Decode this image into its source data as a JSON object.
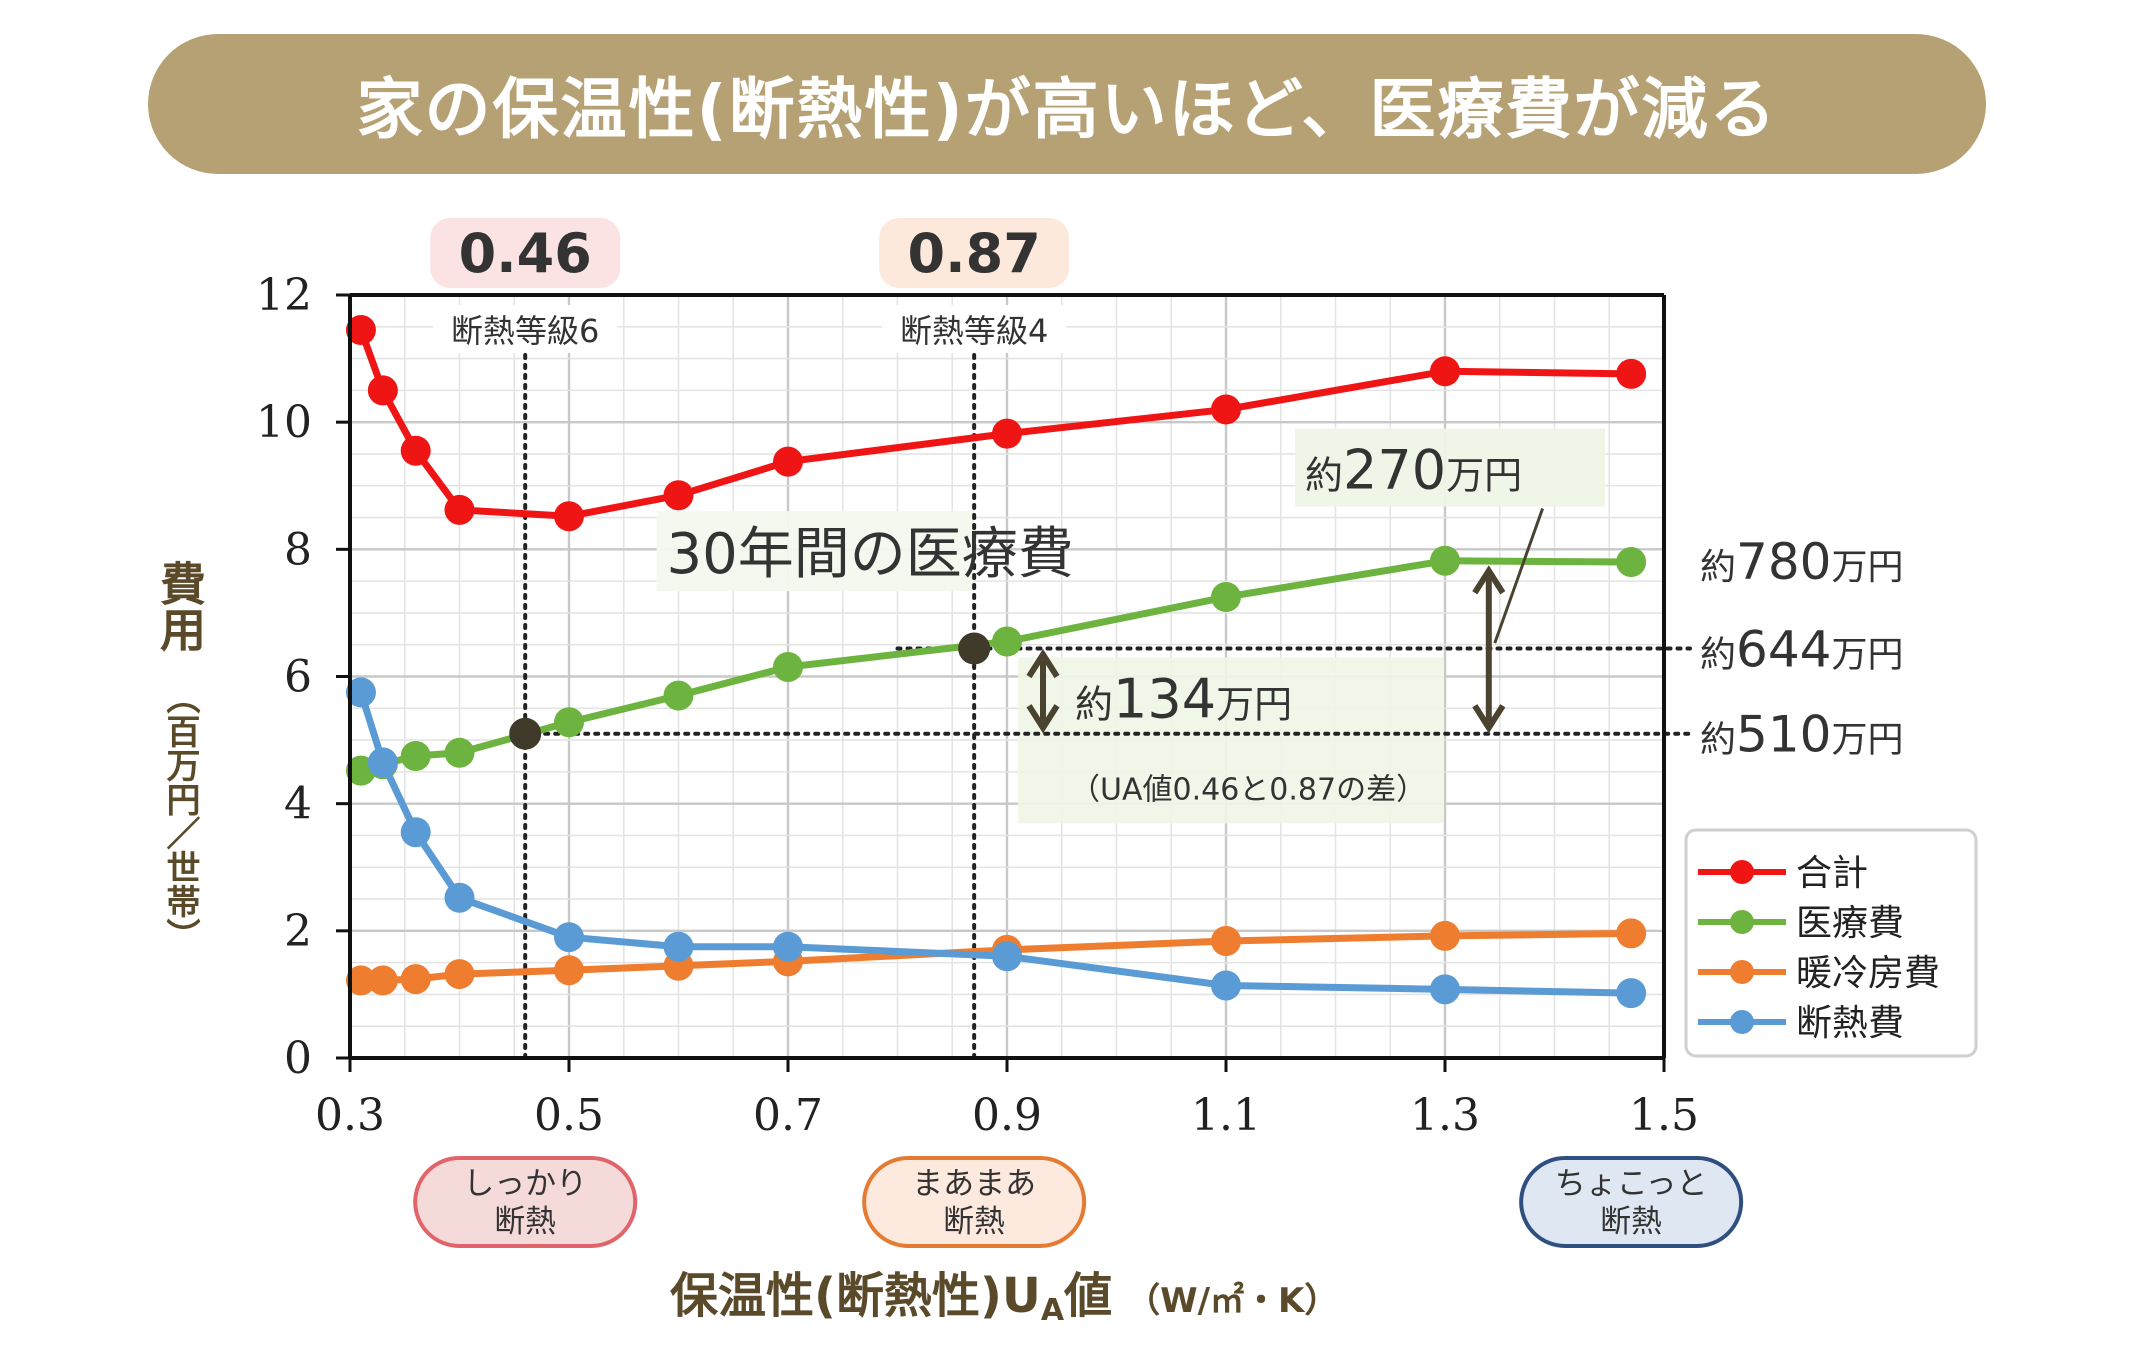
{
  "banner": {
    "title": "家の保温性(断熱性)が高いほど、医療費が減る"
  },
  "chart_data": {
    "type": "line",
    "xlabel_main": "保温性(断熱性)U",
    "xlabel_sub": "A",
    "xlabel_tail": "値",
    "xlabel_unit": "（W/㎡・K）",
    "ylabel_main": "費用",
    "ylabel_unit": "（百万円／世帯）",
    "xlim": [
      0.3,
      1.5
    ],
    "ylim": [
      0,
      12
    ],
    "x_ticks": [
      "0.3",
      "0.5",
      "0.7",
      "0.9",
      "1.1",
      "1.3",
      "1.5"
    ],
    "y_ticks": [
      "0",
      "2",
      "4",
      "6",
      "8",
      "10",
      "12"
    ],
    "grid": true,
    "legend_position": "right",
    "x": [
      0.31,
      0.33,
      0.36,
      0.4,
      0.5,
      0.6,
      0.7,
      0.9,
      1.1,
      1.3,
      1.47
    ],
    "series": [
      {
        "name": "合計",
        "color": "#f01515",
        "values": [
          11.45,
          10.5,
          9.55,
          8.62,
          8.52,
          8.85,
          9.38,
          9.82,
          10.2,
          10.8,
          10.76
        ]
      },
      {
        "name": "医療費",
        "color": "#6db33f",
        "values": [
          4.52,
          4.62,
          4.75,
          4.8,
          5.28,
          5.7,
          6.15,
          6.55,
          7.25,
          7.82,
          7.8
        ]
      },
      {
        "name": "暖冷房費",
        "color": "#ef7d2f",
        "values": [
          1.22,
          1.22,
          1.24,
          1.32,
          1.38,
          1.45,
          1.52,
          1.7,
          1.84,
          1.92,
          1.96
        ]
      },
      {
        "name": "断熱費",
        "color": "#5b9bd5",
        "values": [
          5.75,
          4.65,
          3.55,
          2.52,
          1.9,
          1.75,
          1.75,
          1.6,
          1.14,
          1.08,
          1.02
        ]
      }
    ],
    "markers": [
      {
        "label": "0.46",
        "grade": "断熱等級6",
        "x": 0.46,
        "y": 5.1,
        "badge_color": "#fbe3e3",
        "category": "しっかり\n断熱",
        "category_line1": "しっかり",
        "category_line2": "断熱",
        "category_bg": "#f5dada",
        "category_border": "#e0646a"
      },
      {
        "label": "0.87",
        "grade": "断熱等級4",
        "x": 0.87,
        "y": 6.44,
        "badge_color": "#fde8dc",
        "category_line1": "まあまあ",
        "category_line2": "断熱",
        "category_bg": "#fde9dd",
        "category_border": "#e57b33"
      }
    ],
    "extra_category": {
      "line1": "ちょこっと",
      "line2": "断熱",
      "x": 1.47,
      "bg": "#dfe7f3",
      "border": "#2f4f80"
    },
    "annotations": {
      "series_title": "30年間の医療費",
      "diff_270": {
        "prefix": "約",
        "num": "270",
        "unit": "万円"
      },
      "diff_134": {
        "prefix": "約",
        "num": "134",
        "unit": "万円"
      },
      "diff_134_note": "（UA値0.46と0.87の差）",
      "right_780": {
        "prefix": "約",
        "num": "780",
        "unit": "万円",
        "y": 7.82
      },
      "right_644": {
        "prefix": "約",
        "num": "644",
        "unit": "万円",
        "y": 6.44
      },
      "right_510": {
        "prefix": "約",
        "num": "510",
        "unit": "万円",
        "y": 5.1
      }
    }
  }
}
